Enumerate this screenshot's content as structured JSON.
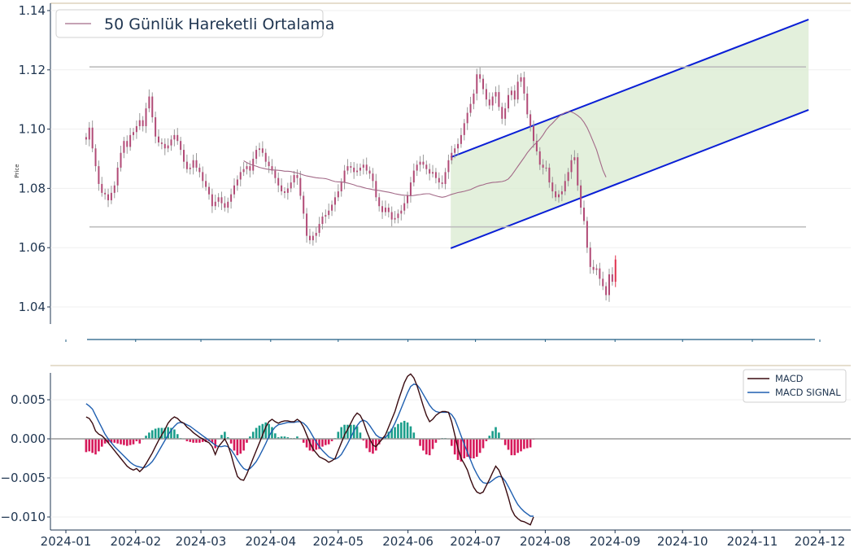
{
  "chart_data": [
    {
      "type": "candlestick",
      "panel": "price",
      "ylabel": "Price",
      "ylim": [
        1.034,
        1.14
      ],
      "yticks": [
        "1.04",
        "1.06",
        "1.08",
        "1.10",
        "1.12",
        "1.14"
      ],
      "legend": {
        "placement": "top-left",
        "label": "50 Günlük Hareketli Ortalama"
      },
      "series": [
        {
          "name": "ohlc",
          "start": "2024-01-10",
          "step_days": 1.4,
          "closes": [
            1.0965,
            1.1005,
            1.0935,
            1.0875,
            1.0815,
            1.0785,
            1.078,
            1.076,
            1.0785,
            1.081,
            1.087,
            1.092,
            1.096,
            1.094,
            1.098,
            1.099,
            1.101,
            1.103,
            1.101,
            1.107,
            1.111,
            1.104,
            1.0975,
            1.0955,
            1.095,
            1.0935,
            1.0945,
            1.0965,
            1.098,
            1.096,
            1.093,
            1.089,
            1.0865,
            1.087,
            1.0895,
            1.087,
            1.0855,
            1.0825,
            1.0805,
            1.078,
            1.074,
            1.0755,
            1.077,
            1.075,
            1.0735,
            1.0755,
            1.078,
            1.081,
            1.083,
            1.0855,
            1.0865,
            1.0875,
            1.086,
            1.09,
            1.093,
            1.0935,
            1.092,
            1.089,
            1.0875,
            1.086,
            1.0835,
            1.081,
            1.079,
            1.0785,
            1.08,
            1.082,
            1.0845,
            1.0835,
            1.0775,
            1.0715,
            1.064,
            1.0625,
            1.064,
            1.065,
            1.068,
            1.0705,
            1.071,
            1.0725,
            1.0745,
            1.077,
            1.079,
            1.082,
            1.086,
            1.0875,
            1.087,
            1.0855,
            1.086,
            1.087,
            1.088,
            1.086,
            1.085,
            1.0825,
            1.077,
            1.074,
            1.072,
            1.0735,
            1.072,
            1.0695,
            1.07,
            1.0715,
            1.0725,
            1.075,
            1.0775,
            1.082,
            1.086,
            1.088,
            1.089,
            1.088,
            1.0865,
            1.085,
            1.0855,
            1.0835,
            1.082,
            1.0815,
            1.0855,
            1.0895,
            1.092,
            1.0935,
            1.095,
            1.098,
            1.102,
            1.1055,
            1.1085,
            1.112,
            1.1185,
            1.117,
            1.1135,
            1.11,
            1.108,
            1.111,
            1.1125,
            1.1075,
            1.1035,
            1.107,
            1.1115,
            1.113,
            1.11,
            1.116,
            1.1175,
            1.112,
            1.105,
            1.101,
            1.096,
            1.0925,
            1.088,
            1.087,
            1.087,
            1.082,
            1.079,
            1.077,
            1.078,
            1.079,
            1.0825,
            1.0855,
            1.0895,
            1.0905,
            1.081,
            1.0735,
            1.069,
            1.06,
            1.0535,
            1.0525,
            1.053,
            1.0495,
            1.047,
            1.044,
            1.051,
            1.0485,
            1.056
          ]
        },
        {
          "name": "50 Günlük Hareketli Ortalama",
          "color": "#a36a88",
          "start": "2024-03-20",
          "step_days": 1.4,
          "values": [
            1.0893,
            1.0887,
            1.0882,
            1.0878,
            1.0875,
            1.0871,
            1.0868,
            1.0866,
            1.0864,
            1.0862,
            1.0862,
            1.0861,
            1.086,
            1.0858,
            1.0858,
            1.0857,
            1.0854,
            1.0852,
            1.0849,
            1.0845,
            1.0842,
            1.084,
            1.0838,
            1.0836,
            1.0835,
            1.0834,
            1.0833,
            1.083,
            1.0826,
            1.0823,
            1.0822,
            1.0822,
            1.082,
            1.0818,
            1.0815,
            1.0812,
            1.0808,
            1.0806,
            1.0803,
            1.08,
            1.0798,
            1.0796,
            1.0794,
            1.0793,
            1.0791,
            1.0789,
            1.0787,
            1.0785,
            1.0782,
            1.078,
            1.0778,
            1.0777,
            1.0776,
            1.0775,
            1.0776,
            1.0778,
            1.0779,
            1.0781,
            1.0782,
            1.0782,
            1.0778,
            1.0775,
            1.0772,
            1.077,
            1.0772,
            1.0776,
            1.078,
            1.0783,
            1.0786,
            1.0788,
            1.079,
            1.0793,
            1.0796,
            1.0801,
            1.0806,
            1.081,
            1.0812,
            1.0816,
            1.0818,
            1.082,
            1.0821,
            1.0822,
            1.0823,
            1.0826,
            1.0832,
            1.0844,
            1.0859,
            1.0874,
            1.0889,
            1.0904,
            1.092,
            1.0933,
            1.0945,
            1.0955,
            1.0966,
            1.098,
            1.0997,
            1.101,
            1.102,
            1.1031,
            1.1042,
            1.105,
            1.1056,
            1.1059,
            1.1058,
            1.1053,
            1.1046,
            1.1037,
            1.1023,
            1.1005,
            1.0982,
            1.0956,
            1.093,
            1.0895,
            1.0862,
            1.0838
          ]
        }
      ],
      "channel": {
        "upper": [
          {
            "x": "2024-06-20",
            "y": 1.0905
          },
          {
            "x": "2024-11-26",
            "y": 1.137
          }
        ],
        "lower": [
          {
            "x": "2024-06-20",
            "y": 1.0598
          },
          {
            "x": "2024-11-26",
            "y": 1.1065
          }
        ]
      },
      "horizontal_lines": [
        1.121,
        1.067
      ]
    },
    {
      "type": "line+bar",
      "panel": "macd",
      "ylim": [
        -0.0112,
        0.0085
      ],
      "yticks": [
        "0.005",
        "0.000",
        "−0.005",
        "−0.010"
      ],
      "legend": {
        "placement": "top-right",
        "entries": [
          "MACD",
          "MACD SIGNAL"
        ]
      },
      "series": [
        {
          "name": "MACD",
          "color": "#3a0b10",
          "start": "2024-01-10",
          "step_days": 1.4,
          "values": [
            0.0028,
            0.0026,
            0.002,
            0.001,
            0.0006,
            0.0004,
            0.0,
            -0.0005,
            -0.001,
            -0.0015,
            -0.002,
            -0.0025,
            -0.003,
            -0.0035,
            -0.0038,
            -0.004,
            -0.0038,
            -0.0042,
            -0.0038,
            -0.0032,
            -0.0025,
            -0.0018,
            -0.001,
            -0.0002,
            0.0005,
            0.0012,
            0.002,
            0.0025,
            0.0028,
            0.0026,
            0.0022,
            0.002,
            0.0015,
            0.0012,
            0.0008,
            0.0005,
            0.0002,
            0.0,
            -0.0003,
            -0.0005,
            -0.001,
            -0.002,
            -0.001,
            -0.0005,
            0.0,
            -0.0008,
            -0.002,
            -0.0035,
            -0.0048,
            -0.0052,
            -0.0053,
            -0.0045,
            -0.0035,
            -0.0025,
            -0.0015,
            -0.0005,
            0.0005,
            0.0015,
            0.0022,
            0.0025,
            0.0022,
            0.002,
            0.0022,
            0.0023,
            0.0023,
            0.0022,
            0.0022,
            0.0025,
            0.0022,
            0.0015,
            0.0005,
            -0.0005,
            -0.0013,
            -0.0018,
            -0.0023,
            -0.0025,
            -0.0027,
            -0.003,
            -0.0028,
            -0.0025,
            -0.0015,
            -0.0005,
            0.0005,
            0.0012,
            0.002,
            0.0028,
            0.0033,
            0.003,
            0.0022,
            0.001,
            0.0,
            -0.0008,
            -0.001,
            -0.0005,
            0.0,
            0.0005,
            0.0015,
            0.0025,
            0.0035,
            0.0048,
            0.006,
            0.0072,
            0.008,
            0.0083,
            0.0078,
            0.0068,
            0.0055,
            0.0042,
            0.003,
            0.0022,
            0.0025,
            0.003,
            0.0033,
            0.0035,
            0.0035,
            0.0034,
            0.0022,
            0.0005,
            -0.0012,
            -0.0025,
            -0.0032,
            -0.004,
            -0.0052,
            -0.0062,
            -0.0068,
            -0.007,
            -0.0068,
            -0.006,
            -0.0052,
            -0.0043,
            -0.0035,
            -0.004,
            -0.005,
            -0.0062,
            -0.0075,
            -0.009,
            -0.0098,
            -0.0102,
            -0.0105,
            -0.0106,
            -0.0108,
            -0.011,
            -0.01
          ]
        },
        {
          "name": "MACD SIGNAL",
          "color": "#1f5fb0",
          "start": "2024-01-10",
          "step_days": 1.4,
          "values": [
            0.0045,
            0.0042,
            0.0038,
            0.003,
            0.0022,
            0.0014,
            0.0006,
            0.0,
            -0.0005,
            -0.001,
            -0.0014,
            -0.0018,
            -0.0022,
            -0.0026,
            -0.003,
            -0.0033,
            -0.0035,
            -0.0036,
            -0.0037,
            -0.0036,
            -0.0033,
            -0.0029,
            -0.0023,
            -0.0016,
            -0.0009,
            -0.0002,
            0.0005,
            0.0011,
            0.0016,
            0.002,
            0.0021,
            0.002,
            0.0018,
            0.0016,
            0.0013,
            0.001,
            0.0007,
            0.0004,
            0.0001,
            -0.0002,
            -0.0005,
            -0.0008,
            -0.001,
            -0.001,
            -0.0009,
            -0.001,
            -0.0014,
            -0.002,
            -0.0027,
            -0.0033,
            -0.0038,
            -0.004,
            -0.0038,
            -0.0034,
            -0.0029,
            -0.0022,
            -0.0014,
            -0.0006,
            0.0003,
            0.001,
            0.0015,
            0.0018,
            0.0019,
            0.002,
            0.0021,
            0.0021,
            0.0021,
            0.0022,
            0.0022,
            0.002,
            0.0016,
            0.001,
            0.0003,
            -0.0004,
            -0.001,
            -0.0015,
            -0.0019,
            -0.0023,
            -0.0025,
            -0.0026,
            -0.0024,
            -0.002,
            -0.0013,
            -0.0006,
            0.0002,
            0.001,
            0.0017,
            0.0022,
            0.0024,
            0.0022,
            0.0017,
            0.0011,
            0.0005,
            0.0002,
            0.0001,
            0.0002,
            0.0006,
            0.0012,
            0.002,
            0.0029,
            0.0039,
            0.0049,
            0.0059,
            0.0067,
            0.007,
            0.0069,
            0.0064,
            0.0057,
            0.005,
            0.0043,
            0.0038,
            0.0035,
            0.0034,
            0.0034,
            0.0034,
            0.0034,
            0.0031,
            0.0025,
            0.0015,
            0.0004,
            -0.0007,
            -0.0017,
            -0.0027,
            -0.0037,
            -0.0045,
            -0.0052,
            -0.0056,
            -0.0057,
            -0.0056,
            -0.0053,
            -0.005,
            -0.0048,
            -0.0049,
            -0.0054,
            -0.0061,
            -0.0069,
            -0.0077,
            -0.0084,
            -0.0089,
            -0.0093,
            -0.0096,
            -0.0099,
            -0.0099
          ]
        }
      ],
      "histogram": {
        "name": "MACD - MACD SIGNAL",
        "positive_color": "#1b9e8b",
        "negative_color": "#d6185a"
      }
    }
  ],
  "x_axis": {
    "ticks": [
      "2024-01",
      "2024-02",
      "2024-03",
      "2024-04",
      "2024-05",
      "2024-06",
      "2024-07",
      "2024-08",
      "2024-09",
      "2024-10",
      "2024-11",
      "2024-12"
    ]
  }
}
